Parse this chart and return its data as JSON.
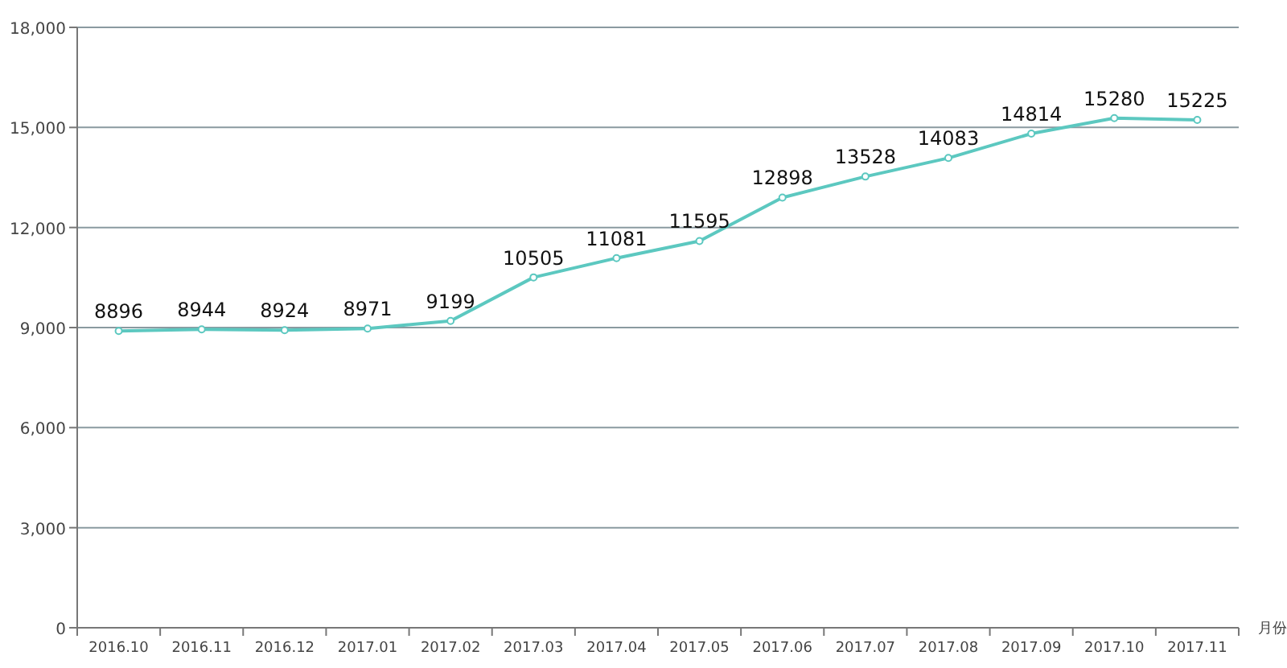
{
  "chart_data": {
    "type": "line",
    "xlabel": "月份",
    "categories": [
      "2016.10",
      "2016.11",
      "2016.12",
      "2017.01",
      "2017.02",
      "2017.03",
      "2017.04",
      "2017.05",
      "2017.06",
      "2017.07",
      "2017.08",
      "2017.09",
      "2017.10",
      "2017.11"
    ],
    "series": [
      {
        "color": "#5cc8c0",
        "values": [
          8896,
          8944,
          8924,
          8971,
          9199,
          10505,
          11081,
          11595,
          12898,
          13528,
          14083,
          14814,
          15280,
          15225
        ]
      }
    ],
    "ylim": [
      0,
      18000
    ],
    "yticks": [
      {
        "value": 0,
        "label": "0"
      },
      {
        "value": 3000,
        "label": "3,000"
      },
      {
        "value": 6000,
        "label": "6,000"
      },
      {
        "value": 9000,
        "label": "9,000"
      },
      {
        "value": 12000,
        "label": "12,000"
      },
      {
        "value": 15000,
        "label": "15,000"
      },
      {
        "value": 18000,
        "label": "18,000"
      }
    ],
    "grid": "y",
    "marker": "circle",
    "data_labels": true
  }
}
